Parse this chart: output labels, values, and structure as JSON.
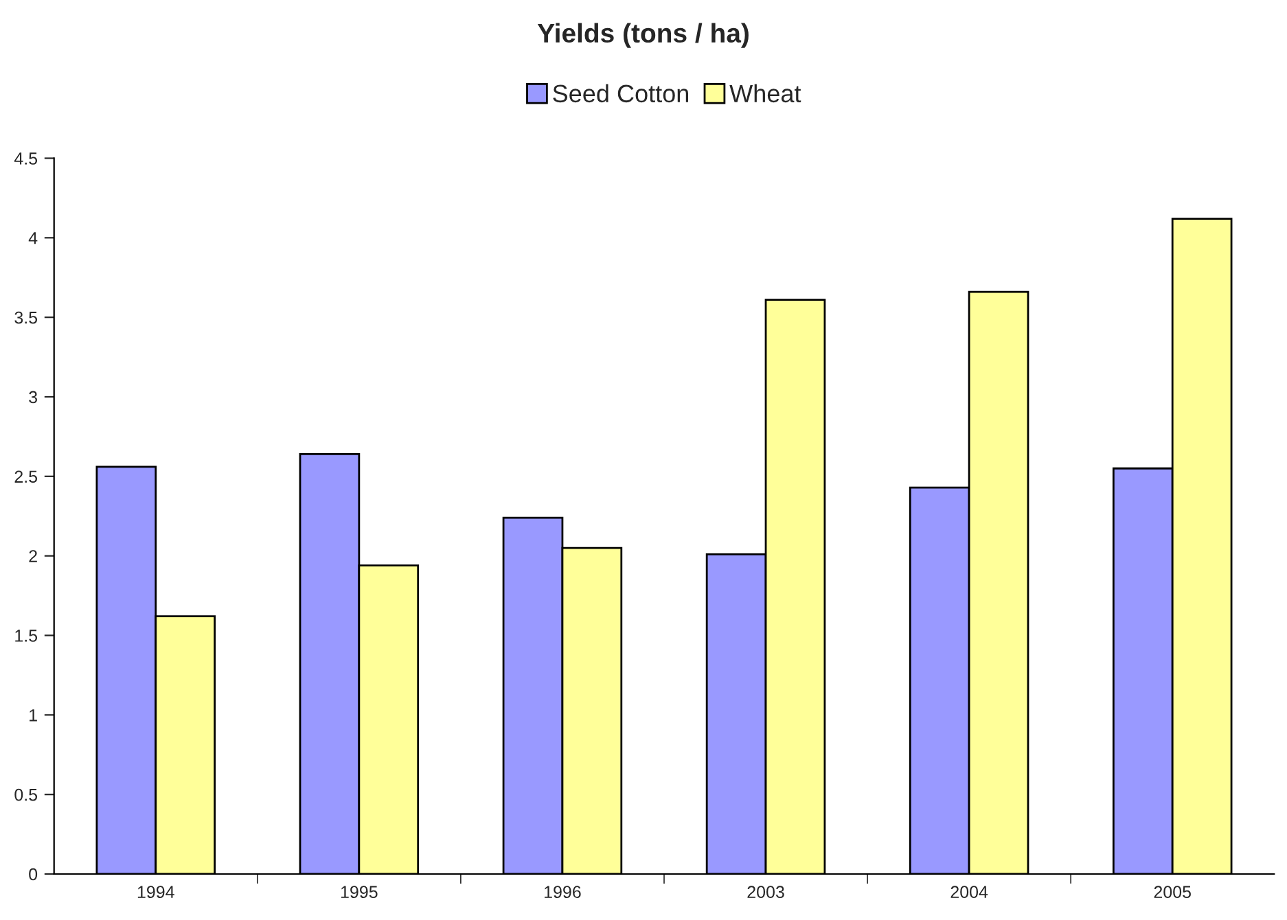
{
  "chart_data": {
    "type": "bar",
    "title": "Yields (tons / ha)",
    "categories": [
      "1994",
      "1995",
      "1996",
      "2003",
      "2004",
      "2005"
    ],
    "series": [
      {
        "name": "Seed Cotton",
        "color": "#9999ff",
        "values": [
          2.56,
          2.64,
          2.24,
          2.01,
          2.43,
          2.55
        ]
      },
      {
        "name": "Wheat",
        "color": "#ffff99",
        "values": [
          1.62,
          1.94,
          2.05,
          3.61,
          3.66,
          4.12
        ]
      }
    ],
    "ylim": [
      0,
      4.5
    ],
    "yticks": [
      0,
      0.5,
      1,
      1.5,
      2,
      2.5,
      3,
      3.5,
      4,
      4.5
    ],
    "grid": false,
    "legend": "top"
  }
}
